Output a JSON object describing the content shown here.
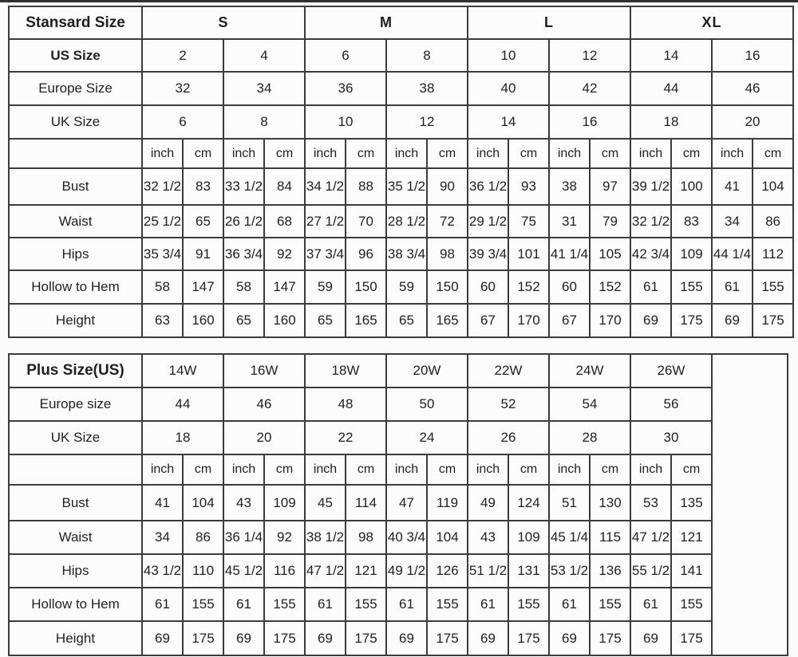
{
  "colors": {
    "border": "#3c3c3c",
    "text": "#1f1f1f",
    "background": "#fbfbfb",
    "cell_background": "#fcfcfc"
  },
  "chart_data": [
    {
      "type": "table",
      "corner_label": "Stansard Size",
      "groups": [
        "S",
        "M",
        "L",
        "XL"
      ],
      "groups_bold": true,
      "size_rows": [
        {
          "label": "US Size",
          "bold": true,
          "values": [
            "2",
            "4",
            "6",
            "8",
            "10",
            "12",
            "14",
            "16"
          ]
        },
        {
          "label": "Europe Size",
          "bold": false,
          "values": [
            "32",
            "34",
            "36",
            "38",
            "40",
            "42",
            "44",
            "46"
          ]
        },
        {
          "label": "UK Size",
          "bold": false,
          "values": [
            "6",
            "8",
            "10",
            "12",
            "14",
            "16",
            "18",
            "20"
          ]
        }
      ],
      "units": [
        "inch",
        "cm"
      ],
      "unit_pairs": 8,
      "has_trailing_empty_column": false,
      "measure_rows": [
        {
          "label": "Bust",
          "values": [
            "32 1/2",
            "83",
            "33 1/2",
            "84",
            "34 1/2",
            "88",
            "35 1/2",
            "90",
            "36 1/2",
            "93",
            "38",
            "97",
            "39 1/2",
            "100",
            "41",
            "104"
          ]
        },
        {
          "label": "Waist",
          "values": [
            "25 1/2",
            "65",
            "26 1/2",
            "68",
            "27 1/2",
            "70",
            "28 1/2",
            "72",
            "29 1/2",
            "75",
            "31",
            "79",
            "32 1/2",
            "83",
            "34",
            "86"
          ]
        },
        {
          "label": "Hips",
          "values": [
            "35 3/4",
            "91",
            "36 3/4",
            "92",
            "37 3/4",
            "96",
            "38 3/4",
            "98",
            "39 3/4",
            "101",
            "41 1/4",
            "105",
            "42 3/4",
            "109",
            "44 1/4",
            "112"
          ]
        },
        {
          "label": "Hollow to Hem",
          "values": [
            "58",
            "147",
            "58",
            "147",
            "59",
            "150",
            "59",
            "150",
            "60",
            "152",
            "60",
            "152",
            "61",
            "155",
            "61",
            "155"
          ]
        },
        {
          "label": "Height",
          "values": [
            "63",
            "160",
            "65",
            "160",
            "65",
            "165",
            "65",
            "165",
            "67",
            "170",
            "67",
            "170",
            "69",
            "175",
            "69",
            "175"
          ]
        }
      ]
    },
    {
      "type": "table",
      "corner_label": "Plus Size(US)",
      "groups": [
        "14W",
        "16W",
        "18W",
        "20W",
        "22W",
        "24W",
        "26W"
      ],
      "groups_bold": false,
      "size_rows": [
        {
          "label": "Europe size",
          "bold": false,
          "values": [
            "44",
            "46",
            "48",
            "50",
            "52",
            "54",
            "56"
          ]
        },
        {
          "label": "UK Size",
          "bold": false,
          "values": [
            "18",
            "20",
            "22",
            "24",
            "26",
            "28",
            "30"
          ]
        }
      ],
      "units": [
        "inch",
        "cm"
      ],
      "unit_pairs": 7,
      "has_trailing_empty_column": true,
      "measure_rows": [
        {
          "label": "Bust",
          "values": [
            "41",
            "104",
            "43",
            "109",
            "45",
            "114",
            "47",
            "119",
            "49",
            "124",
            "51",
            "130",
            "53",
            "135"
          ]
        },
        {
          "label": "Waist",
          "values": [
            "34",
            "86",
            "36 1/4",
            "92",
            "38 1/2",
            "98",
            "40 3/4",
            "104",
            "43",
            "109",
            "45 1/4",
            "115",
            "47 1/2",
            "121"
          ]
        },
        {
          "label": "Hips",
          "values": [
            "43 1/2",
            "110",
            "45 1/2",
            "116",
            "47 1/2",
            "121",
            "49 1/2",
            "126",
            "51 1/2",
            "131",
            "53 1/2",
            "136",
            "55 1/2",
            "141"
          ]
        },
        {
          "label": "Hollow to Hem",
          "values": [
            "61",
            "155",
            "61",
            "155",
            "61",
            "155",
            "61",
            "155",
            "61",
            "155",
            "61",
            "155",
            "61",
            "155"
          ]
        },
        {
          "label": "Height",
          "values": [
            "69",
            "175",
            "69",
            "175",
            "69",
            "175",
            "69",
            "175",
            "69",
            "175",
            "69",
            "175",
            "69",
            "175"
          ]
        }
      ]
    }
  ]
}
